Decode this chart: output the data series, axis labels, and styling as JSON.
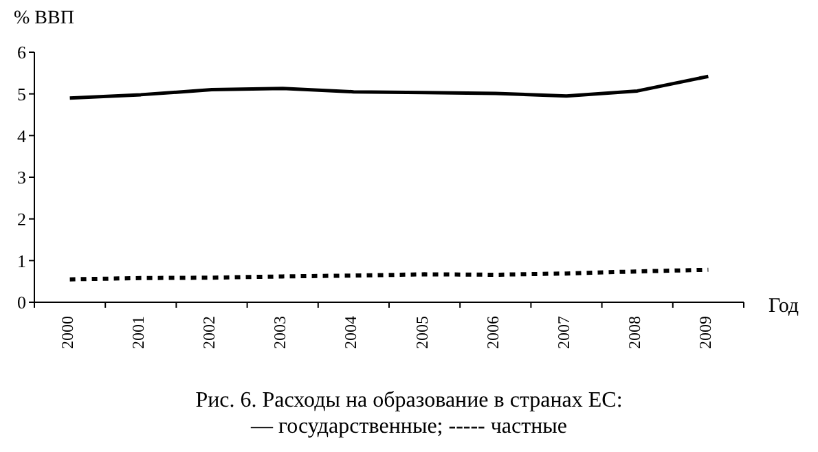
{
  "chart_data": {
    "type": "line",
    "title": "Рис. 6. Расходы на образование в странах ЕС:",
    "subtitle": "— государственные; ----- частные",
    "xlabel": "Год",
    "ylabel": "% ВВП",
    "categories": [
      "2000",
      "2001",
      "2002",
      "2003",
      "2004",
      "2005",
      "2006",
      "2007",
      "2008",
      "2009"
    ],
    "series": [
      {
        "color": "#000000",
        "line_style": "solid",
        "values": [
          4.9,
          4.98,
          5.1,
          5.13,
          5.05,
          5.03,
          5.01,
          4.95,
          5.07,
          5.42
        ]
      },
      {
        "color": "#000000",
        "line_style": "dashed",
        "values": [
          0.55,
          0.58,
          0.59,
          0.62,
          0.64,
          0.67,
          0.66,
          0.69,
          0.74,
          0.78
        ]
      }
    ],
    "ylim": [
      0,
      6
    ],
    "yticks": [
      0,
      1,
      2,
      3,
      4,
      5,
      6
    ],
    "grid": false,
    "legend": false,
    "marker": "none"
  }
}
